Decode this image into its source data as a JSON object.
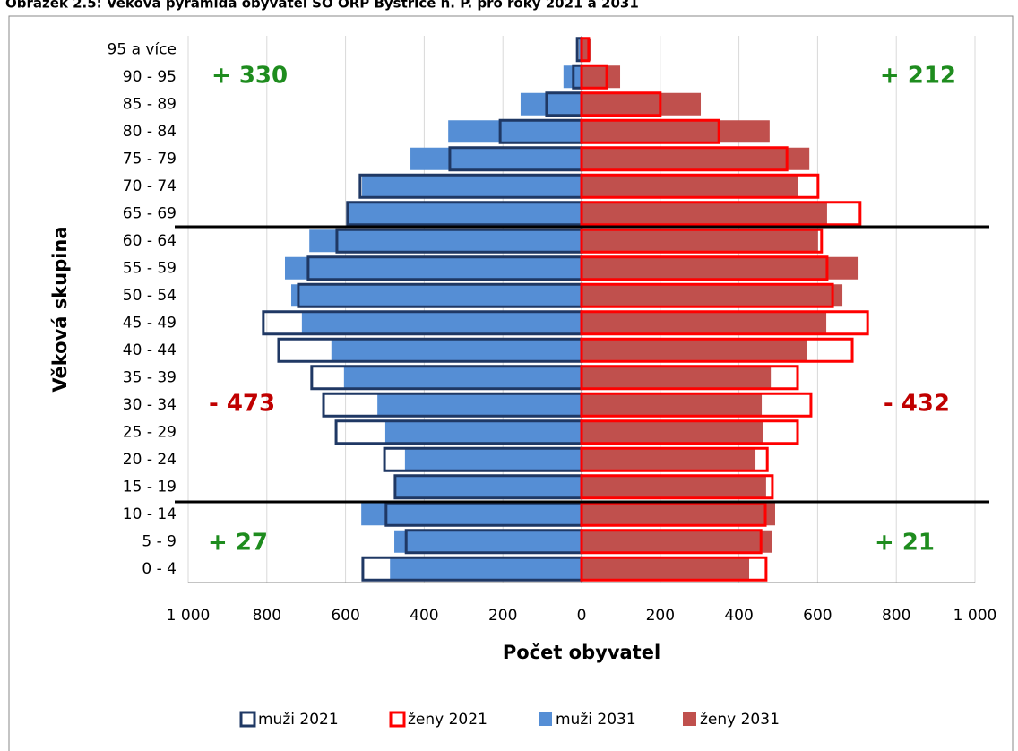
{
  "chart_data": {
    "type": "pyramid",
    "title": "Obrázek 2.5: Věková pyramida obyvatel SO ORP Bystřice n. P. pro roky 2021 a 2031",
    "x_label": "Počet obyvatel",
    "y_label": "Věková skupina",
    "categories": [
      "0 - 4",
      "5 - 9",
      "10 - 14",
      "15 - 19",
      "20 - 24",
      "25 - 29",
      "30 - 34",
      "35 - 39",
      "40 - 44",
      "45 - 49",
      "50 - 54",
      "55 - 59",
      "60 - 64",
      "65 - 69",
      "70 - 74",
      "75 - 79",
      "80 - 84",
      "85 - 89",
      "90 - 95",
      "95 a více"
    ],
    "series": [
      {
        "name": "muži 2021",
        "color": "#1f3864",
        "style": "outline",
        "side": "left",
        "values": [
          556,
          446,
          497,
          474,
          501,
          624,
          656,
          686,
          770,
          809,
          720,
          695,
          622,
          595,
          563,
          335,
          207,
          89,
          21,
          11
        ]
      },
      {
        "name": "ženy 2021",
        "color": "#ff0000",
        "style": "outline",
        "side": "right",
        "values": [
          469,
          456,
          467,
          485,
          472,
          549,
          583,
          549,
          688,
          727,
          638,
          624,
          610,
          708,
          601,
          522,
          349,
          200,
          64,
          18
        ]
      },
      {
        "name": "muži 2031",
        "color": "#558ed5",
        "style": "filled",
        "side": "left",
        "values": [
          487,
          476,
          560,
          471,
          449,
          499,
          519,
          604,
          636,
          711,
          738,
          754,
          692,
          590,
          558,
          435,
          339,
          155,
          46,
          7
        ]
      },
      {
        "name": "ženy 2031",
        "color": "#c0504d",
        "style": "filled",
        "side": "right",
        "values": [
          426,
          485,
          492,
          469,
          442,
          462,
          458,
          481,
          574,
          622,
          663,
          704,
          601,
          624,
          551,
          579,
          478,
          303,
          98,
          23
        ]
      }
    ],
    "xlim": [
      -1000,
      1000
    ],
    "xticks": [
      {
        "value": -1000,
        "label": "1 000"
      },
      {
        "value": -800,
        "label": "800"
      },
      {
        "value": -600,
        "label": "600"
      },
      {
        "value": -400,
        "label": "400"
      },
      {
        "value": -200,
        "label": "200"
      },
      0,
      200,
      400,
      600,
      800,
      {
        "value": 1000,
        "label": "1 000"
      }
    ],
    "grid": true,
    "annotations": [
      {
        "text": "+ 330",
        "color": "#1e8c1e"
      },
      {
        "text": "+ 212",
        "color": "#1e8c1e"
      },
      {
        "text": "- 473",
        "color": "#c00000"
      },
      {
        "text": "- 432",
        "color": "#c00000"
      },
      {
        "text": "+ 27",
        "color": "#1e8c1e"
      },
      {
        "text": "+ 21",
        "color": "#1e8c1e"
      }
    ]
  }
}
